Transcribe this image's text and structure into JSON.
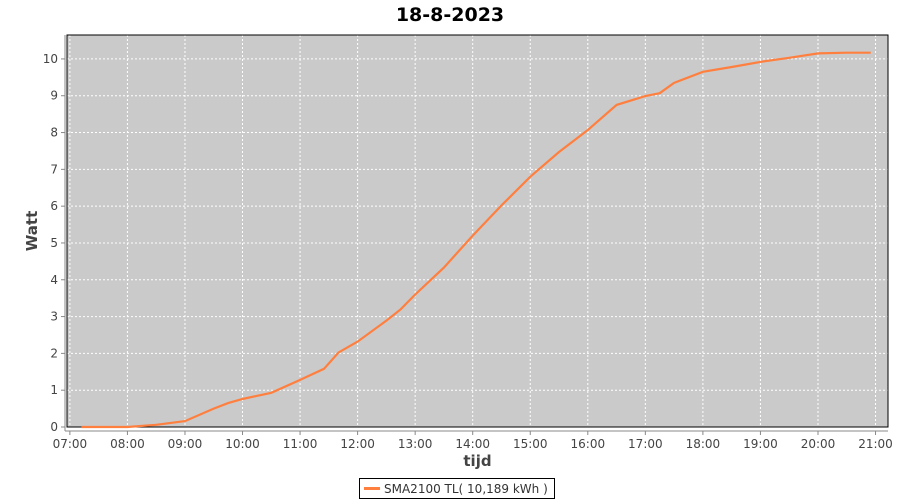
{
  "chart_data": {
    "type": "line",
    "title": "18-8-2023",
    "xlabel": "tijd",
    "ylabel": "Watt",
    "x_ticks": [
      "07:00",
      "08:00",
      "09:00",
      "10:00",
      "11:00",
      "12:00",
      "13:00",
      "14:00",
      "15:00",
      "16:00",
      "17:00",
      "18:00",
      "19:00",
      "20:00",
      "21:00"
    ],
    "y_ticks": [
      0,
      1,
      2,
      3,
      4,
      5,
      6,
      7,
      8,
      9,
      10
    ],
    "xlim": [
      "06:57",
      "21:13"
    ],
    "ylim": [
      0,
      10.65
    ],
    "grid": true,
    "legend_position": "bottom",
    "plot_background": "#cacaca",
    "series": [
      {
        "name": "SMA2100 TL( 10,189 kWh )",
        "color": "#ff7f3f",
        "x": [
          "07:12",
          "08:00",
          "08:30",
          "09:00",
          "09:30",
          "09:45",
          "10:00",
          "10:30",
          "11:00",
          "11:25",
          "11:40",
          "12:00",
          "12:30",
          "12:45",
          "13:00",
          "13:30",
          "14:00",
          "14:30",
          "15:00",
          "15:30",
          "16:00",
          "16:30",
          "17:00",
          "17:15",
          "17:30",
          "18:00",
          "18:30",
          "19:00",
          "19:30",
          "20:00",
          "20:30",
          "20:55"
        ],
        "y": [
          0,
          0,
          0.06,
          0.16,
          0.5,
          0.65,
          0.76,
          0.93,
          1.28,
          1.58,
          2.02,
          2.32,
          2.89,
          3.2,
          3.6,
          4.33,
          5.2,
          6.02,
          6.8,
          7.47,
          8.07,
          8.75,
          8.99,
          9.07,
          9.35,
          9.65,
          9.78,
          9.92,
          10.03,
          10.15,
          10.17,
          10.17
        ]
      }
    ]
  }
}
